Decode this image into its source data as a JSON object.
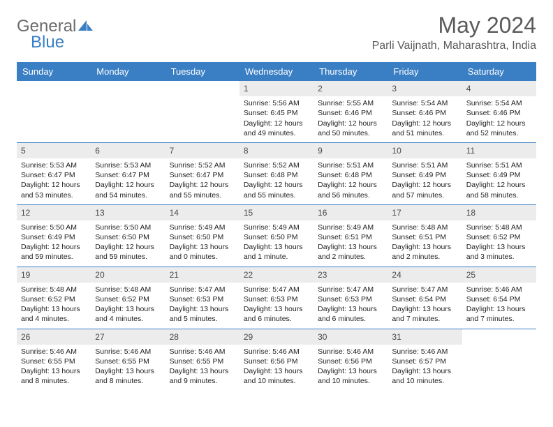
{
  "brand": {
    "part1": "General",
    "part2": "Blue"
  },
  "title": "May 2024",
  "location": "Parli Vaijnath, Maharashtra, India",
  "colors": {
    "header_bg": "#3a7fc4",
    "header_fg": "#ffffff",
    "daynum_bg": "#ececec",
    "border": "#3a7fc4",
    "brand_gray": "#6b6b6b",
    "brand_blue": "#3a7fc4"
  },
  "weekdays": [
    "Sunday",
    "Monday",
    "Tuesday",
    "Wednesday",
    "Thursday",
    "Friday",
    "Saturday"
  ],
  "weeks": [
    [
      null,
      null,
      null,
      {
        "n": "1",
        "sr": "5:56 AM",
        "ss": "6:45 PM",
        "dl": "12 hours and 49 minutes."
      },
      {
        "n": "2",
        "sr": "5:55 AM",
        "ss": "6:46 PM",
        "dl": "12 hours and 50 minutes."
      },
      {
        "n": "3",
        "sr": "5:54 AM",
        "ss": "6:46 PM",
        "dl": "12 hours and 51 minutes."
      },
      {
        "n": "4",
        "sr": "5:54 AM",
        "ss": "6:46 PM",
        "dl": "12 hours and 52 minutes."
      }
    ],
    [
      {
        "n": "5",
        "sr": "5:53 AM",
        "ss": "6:47 PM",
        "dl": "12 hours and 53 minutes."
      },
      {
        "n": "6",
        "sr": "5:53 AM",
        "ss": "6:47 PM",
        "dl": "12 hours and 54 minutes."
      },
      {
        "n": "7",
        "sr": "5:52 AM",
        "ss": "6:47 PM",
        "dl": "12 hours and 55 minutes."
      },
      {
        "n": "8",
        "sr": "5:52 AM",
        "ss": "6:48 PM",
        "dl": "12 hours and 55 minutes."
      },
      {
        "n": "9",
        "sr": "5:51 AM",
        "ss": "6:48 PM",
        "dl": "12 hours and 56 minutes."
      },
      {
        "n": "10",
        "sr": "5:51 AM",
        "ss": "6:49 PM",
        "dl": "12 hours and 57 minutes."
      },
      {
        "n": "11",
        "sr": "5:51 AM",
        "ss": "6:49 PM",
        "dl": "12 hours and 58 minutes."
      }
    ],
    [
      {
        "n": "12",
        "sr": "5:50 AM",
        "ss": "6:49 PM",
        "dl": "12 hours and 59 minutes."
      },
      {
        "n": "13",
        "sr": "5:50 AM",
        "ss": "6:50 PM",
        "dl": "12 hours and 59 minutes."
      },
      {
        "n": "14",
        "sr": "5:49 AM",
        "ss": "6:50 PM",
        "dl": "13 hours and 0 minutes."
      },
      {
        "n": "15",
        "sr": "5:49 AM",
        "ss": "6:50 PM",
        "dl": "13 hours and 1 minute."
      },
      {
        "n": "16",
        "sr": "5:49 AM",
        "ss": "6:51 PM",
        "dl": "13 hours and 2 minutes."
      },
      {
        "n": "17",
        "sr": "5:48 AM",
        "ss": "6:51 PM",
        "dl": "13 hours and 2 minutes."
      },
      {
        "n": "18",
        "sr": "5:48 AM",
        "ss": "6:52 PM",
        "dl": "13 hours and 3 minutes."
      }
    ],
    [
      {
        "n": "19",
        "sr": "5:48 AM",
        "ss": "6:52 PM",
        "dl": "13 hours and 4 minutes."
      },
      {
        "n": "20",
        "sr": "5:48 AM",
        "ss": "6:52 PM",
        "dl": "13 hours and 4 minutes."
      },
      {
        "n": "21",
        "sr": "5:47 AM",
        "ss": "6:53 PM",
        "dl": "13 hours and 5 minutes."
      },
      {
        "n": "22",
        "sr": "5:47 AM",
        "ss": "6:53 PM",
        "dl": "13 hours and 6 minutes."
      },
      {
        "n": "23",
        "sr": "5:47 AM",
        "ss": "6:53 PM",
        "dl": "13 hours and 6 minutes."
      },
      {
        "n": "24",
        "sr": "5:47 AM",
        "ss": "6:54 PM",
        "dl": "13 hours and 7 minutes."
      },
      {
        "n": "25",
        "sr": "5:46 AM",
        "ss": "6:54 PM",
        "dl": "13 hours and 7 minutes."
      }
    ],
    [
      {
        "n": "26",
        "sr": "5:46 AM",
        "ss": "6:55 PM",
        "dl": "13 hours and 8 minutes."
      },
      {
        "n": "27",
        "sr": "5:46 AM",
        "ss": "6:55 PM",
        "dl": "13 hours and 8 minutes."
      },
      {
        "n": "28",
        "sr": "5:46 AM",
        "ss": "6:55 PM",
        "dl": "13 hours and 9 minutes."
      },
      {
        "n": "29",
        "sr": "5:46 AM",
        "ss": "6:56 PM",
        "dl": "13 hours and 10 minutes."
      },
      {
        "n": "30",
        "sr": "5:46 AM",
        "ss": "6:56 PM",
        "dl": "13 hours and 10 minutes."
      },
      {
        "n": "31",
        "sr": "5:46 AM",
        "ss": "6:57 PM",
        "dl": "13 hours and 10 minutes."
      },
      null
    ]
  ],
  "labels": {
    "sunrise": "Sunrise:",
    "sunset": "Sunset:",
    "daylight": "Daylight:"
  }
}
